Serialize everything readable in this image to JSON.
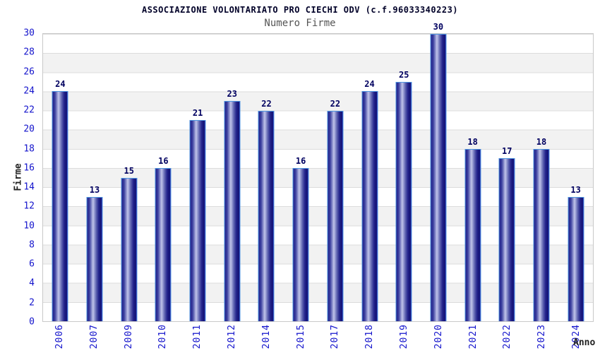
{
  "header": {
    "title": "ASSOCIAZIONE VOLONTARIATO PRO CIECHI ODV (c.f.96033340223)",
    "subtitle": "Numero Firme"
  },
  "chart_data": {
    "type": "bar",
    "title": "ASSOCIAZIONE VOLONTARIATO PRO CIECHI ODV (c.f.96033340223)",
    "subtitle": "Numero Firme",
    "categories": [
      "2006",
      "2007",
      "2009",
      "2010",
      "2011",
      "2012",
      "2014",
      "2015",
      "2017",
      "2018",
      "2019",
      "2020",
      "2021",
      "2022",
      "2023",
      "2024"
    ],
    "values": [
      24,
      13,
      15,
      16,
      21,
      23,
      22,
      16,
      22,
      24,
      25,
      30,
      18,
      17,
      18,
      13
    ],
    "xlabel": "Anno",
    "ylabel": "Firme",
    "ylim": [
      0,
      30
    ],
    "ytick_step": 2,
    "yticks": [
      0,
      2,
      4,
      6,
      8,
      10,
      12,
      14,
      16,
      18,
      20,
      22,
      24,
      26,
      28,
      30
    ],
    "grid": true,
    "stripes": "alternating horizontal bands every 2 units, white and light gray",
    "legend": "none",
    "value_labels_shown": true,
    "colors": {
      "title": "#000028",
      "subtitle": "#555555",
      "tick_label": "#1414cc",
      "value_label": "#000060",
      "axis_title": "#222222",
      "bar_border": "#4f96e0",
      "bar_dark": "#20208a",
      "bar_light": "#c0c4ea",
      "stripe": "#f2f2f2",
      "grid_line": "#dcdcdc",
      "plot_border": "#c9c9c9"
    }
  }
}
